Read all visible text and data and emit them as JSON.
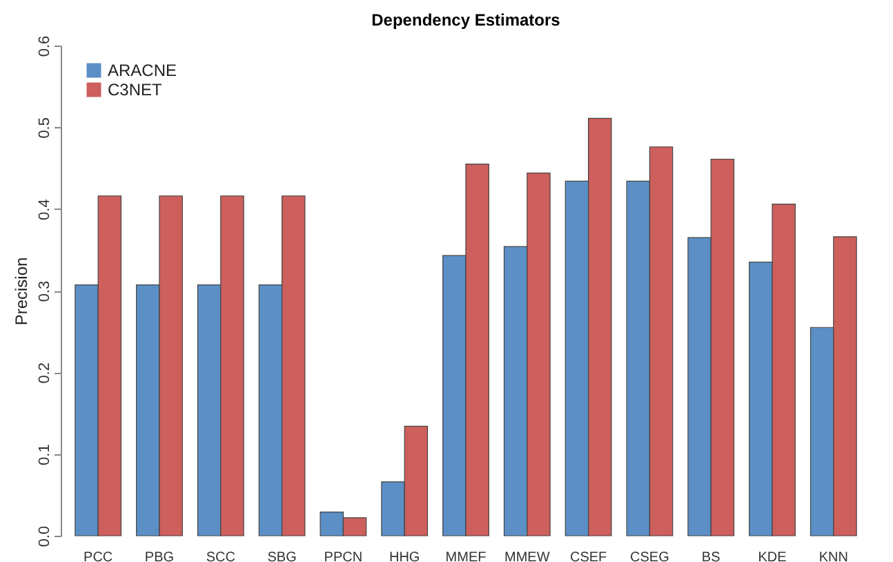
{
  "chart_data": {
    "type": "bar",
    "title": "Dependency Estimators",
    "ylabel": "Precision",
    "categories": [
      "PCC",
      "PBG",
      "SCC",
      "SBG",
      "PPCN",
      "HHG",
      "MMEF",
      "MMEW",
      "CSEF",
      "CSEG",
      "BS",
      "KDE",
      "KNN"
    ],
    "series": [
      {
        "name": "ARACNE",
        "color": "#5b8fc6",
        "values": [
          0.307,
          0.307,
          0.307,
          0.307,
          0.029,
          0.066,
          0.343,
          0.354,
          0.434,
          0.434,
          0.365,
          0.335,
          0.255
        ]
      },
      {
        "name": "C3NET",
        "color": "#cd5f5c",
        "values": [
          0.416,
          0.416,
          0.416,
          0.416,
          0.022,
          0.134,
          0.455,
          0.444,
          0.511,
          0.476,
          0.461,
          0.406,
          0.366
        ]
      }
    ],
    "ylim": [
      0,
      0.6
    ],
    "yticks": [
      {
        "value": 0,
        "label": "0.0"
      },
      0.1,
      0.2,
      0.3,
      0.4,
      0.5,
      0.6
    ],
    "grid": false,
    "legend": "top left"
  }
}
